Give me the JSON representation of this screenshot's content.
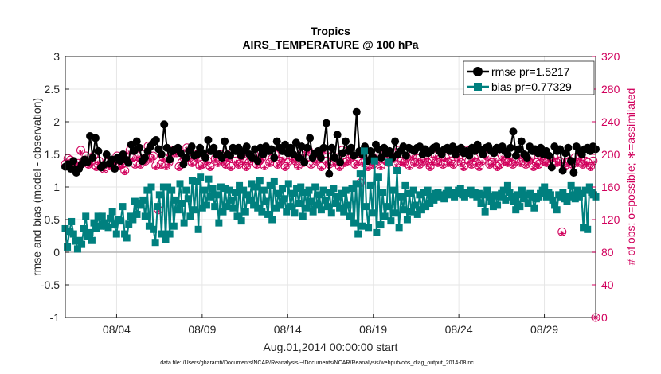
{
  "chart_data": {
    "type": "line",
    "title": "Tropics",
    "subtitle": "AIRS_TEMPERATURE @ 100 hPa",
    "xlabel": "Aug.01,2014 00:00:00 start",
    "ylabel": "rmse and bias (model - observation)",
    "ylabel_right": "# of obs: o=possible; ∗=assimilated",
    "footnote": "data file: /Users/gharamti/Documents/NCAR/Reanalysis/~/Documents/NCAR/Reanalysis/webpub/obs_diag_output_2014-08.nc",
    "xlim": [
      1,
      32
    ],
    "ylim": [
      -1,
      3
    ],
    "ylim_right": [
      0,
      320
    ],
    "x_ticks": [
      4,
      9,
      14,
      19,
      24,
      29
    ],
    "x_tick_labels": [
      "08/04",
      "08/09",
      "08/14",
      "08/19",
      "08/24",
      "08/29"
    ],
    "y_ticks": [
      "-1",
      "-0.5",
      "0",
      "0.5",
      "1",
      "1.5",
      "2",
      "2.5",
      "3"
    ],
    "y_ticks_right": [
      "0",
      "40",
      "80",
      "120",
      "160",
      "200",
      "240",
      "280",
      "320"
    ],
    "legend_position": "top-right",
    "series": [
      {
        "name": "rmse pr=1.5217",
        "color": "#000000",
        "values": [
          1.31,
          1.35,
          1.28,
          1.4,
          1.22,
          1.28,
          1.35,
          1.42,
          1.38,
          1.78,
          1.45,
          1.75,
          1.55,
          1.3,
          1.34,
          1.5,
          1.36,
          1.42,
          1.28,
          1.45,
          1.4,
          1.5,
          1.42,
          1.37,
          1.65,
          1.55,
          1.7,
          1.6,
          1.4,
          1.45,
          1.55,
          1.62,
          1.68,
          1.72,
          1.58,
          1.5,
          1.96,
          1.6,
          1.42,
          1.55,
          1.58,
          1.6,
          1.52,
          1.35,
          1.45,
          1.55,
          1.62,
          1.48,
          1.5,
          1.6,
          1.52,
          1.45,
          1.72,
          1.55,
          1.6,
          1.5,
          1.5,
          1.45,
          1.7,
          1.5,
          1.48,
          1.6,
          1.55,
          1.6,
          1.48,
          1.55,
          1.62,
          1.5,
          1.45,
          1.58,
          1.4,
          1.6,
          1.5,
          1.62,
          1.55,
          1.58,
          1.45,
          1.7,
          1.6,
          1.55,
          1.65,
          1.52,
          1.6,
          1.5,
          1.68,
          1.45,
          1.62,
          1.38,
          1.6,
          1.75,
          1.45,
          1.52,
          1.55,
          1.45,
          1.6,
          1.98,
          1.2,
          1.6,
          1.45,
          1.8,
          1.38,
          1.52,
          1.7,
          1.55,
          1.6,
          1.48,
          2.15,
          1.55,
          1.5,
          1.62,
          1.4,
          1.55,
          1.45,
          1.65,
          1.58,
          1.45,
          1.6,
          1.52,
          1.55,
          1.45,
          1.7,
          1.5,
          1.55,
          1.62,
          1.48,
          1.6,
          1.58,
          1.55,
          1.6,
          1.62,
          1.5,
          1.58,
          1.52,
          1.55,
          1.6,
          1.62,
          1.55,
          1.5,
          1.58,
          1.6,
          1.55,
          1.62,
          1.5,
          1.58,
          1.6,
          1.52,
          1.55,
          1.48,
          1.6,
          1.55,
          1.65,
          1.58,
          1.5,
          1.6,
          1.62,
          1.55,
          1.52,
          1.6,
          1.58,
          1.62,
          1.55,
          1.5,
          1.6,
          1.85,
          1.48,
          1.58,
          1.7,
          1.5,
          1.45,
          1.62,
          1.55,
          1.58,
          1.52,
          1.6,
          1.5,
          1.55,
          1.48,
          1.3,
          1.62,
          1.55,
          1.58,
          1.25,
          1.52,
          1.6,
          1.4,
          1.22,
          1.62,
          1.55,
          1.5,
          1.58,
          1.6,
          1.55,
          1.62,
          1.58
        ]
      },
      {
        "name": "bias pr=0.77329",
        "color": "#00807f",
        "values": [
          0.36,
          0.08,
          0.32,
          0.47,
          0.28,
          0.17,
          0.05,
          0.18,
          0.12,
          0.36,
          0.55,
          0.25,
          0.3,
          0.18,
          0.45,
          0.37,
          0.55,
          0.4,
          0.55,
          0.45,
          0.4,
          0.38,
          0.52,
          0.62,
          0.42,
          0.28,
          0.5,
          0.48,
          0.7,
          0.28,
          0.22,
          0.43,
          0.55,
          0.5,
          0.78,
          0.58,
          0.72,
          0.75,
          0.8,
          0.55,
          0.95,
          0.4,
          1.0,
          0.35,
          0.15,
          0.7,
          0.88,
          0.28,
          1.0,
          0.2,
          1.0,
          0.28,
          0.95,
          0.4,
          0.8,
          0.65,
          1.05,
          0.75,
          0.45,
          0.95,
          0.82,
          0.55,
          1.1,
          0.65,
          1.08,
          0.35,
          1.15,
          0.68,
          0.95,
          0.72,
          1.12,
          0.85,
          0.98,
          0.7,
          0.88,
          0.45,
          1.0,
          0.62,
          0.98,
          0.7,
          0.95,
          0.8,
          0.68,
          0.92,
          0.55,
          1.02,
          0.48,
          0.95,
          0.62,
          0.88,
          0.8,
          1.05,
          0.72,
          1.0,
          0.68,
          1.1,
          0.62,
          0.95,
          0.78,
          0.58,
          1.02,
          0.5,
          1.08,
          0.68,
          0.9,
          0.72,
          0.98,
          0.82,
          0.62,
          1.05,
          0.7,
          0.9,
          0.6,
          0.98,
          0.75,
          1.0,
          0.55,
          0.92,
          0.68,
          0.95,
          0.78,
          0.62,
          1.0,
          0.72,
          0.88,
          0.65,
          0.95,
          0.8,
          0.7,
          0.92,
          0.6,
          0.98,
          0.75,
          0.85,
          0.68,
          0.9,
          0.62,
          0.95,
          0.72,
          0.55,
          0.98,
          0.45,
          1.05,
          0.28,
          1.2,
          0.4,
          1.55,
          0.7,
          0.38,
          1.02,
          0.6,
          1.4,
          0.3,
          1.15,
          0.42,
          0.92,
          0.55,
          0.7,
          1.38,
          0.48,
          0.95,
          0.6,
          1.25,
          0.38,
          0.85,
          0.65,
          1.02,
          0.5,
          0.9,
          0.62,
          0.95,
          0.72,
          0.58,
          0.88,
          0.65,
          0.92,
          0.7,
          0.95,
          0.75,
          0.85,
          0.8,
          0.9,
          0.92,
          0.85,
          0.88,
          0.82,
          0.9,
          0.95,
          0.88,
          0.92,
          0.85,
          0.9,
          0.95,
          0.98,
          0.88,
          0.85,
          0.92,
          0.9,
          0.95,
          0.88,
          0.92,
          0.85,
          0.9,
          0.75,
          0.88,
          0.62,
          0.95,
          0.85,
          0.78,
          0.7,
          0.88,
          0.72,
          0.85,
          0.9,
          0.95,
          0.8,
          1.02,
          0.92,
          0.85,
          0.78,
          0.65,
          0.88,
          0.7,
          0.95,
          0.82,
          0.88,
          0.75,
          0.9,
          0.85,
          0.68,
          0.82,
          0.85,
          0.9,
          0.95,
          1.0,
          0.85,
          0.92,
          0.88,
          0.8,
          0.72,
          0.65,
          0.88,
          0.85,
          0.92,
          0.82,
          0.78,
          0.85,
          1.02,
          0.88,
          0.82,
          0.95,
          0.85,
          0.9,
          0.38,
          0.95,
          0.35,
          1.0,
          0.92,
          0.88,
          0.85
        ]
      },
      {
        "name": "possible",
        "axis": "right",
        "marker": "circle",
        "color": "#d1005c",
        "values": [
          188,
          195,
          193,
          190,
          186,
          189,
          205,
          192,
          198,
          188,
          190,
          198,
          185,
          192,
          186,
          182,
          190,
          186,
          188,
          192,
          198,
          186,
          188,
          180,
          192,
          205,
          196,
          188,
          198,
          188,
          200,
          192,
          210,
          195,
          198,
          186,
          132,
          188,
          196,
          186,
          190,
          200,
          205,
          202,
          185,
          190,
          195,
          208,
          196,
          190,
          200,
          195,
          186,
          188,
          198,
          192,
          185,
          205,
          195,
          190,
          200,
          192,
          188,
          196,
          185,
          205,
          192,
          188,
          198,
          192,
          185,
          190,
          195,
          200,
          188,
          192,
          196,
          186,
          205,
          190,
          195,
          200,
          188,
          192,
          196,
          185,
          190,
          205,
          195,
          192,
          186,
          200,
          190,
          195,
          205,
          188,
          195,
          192,
          200,
          185,
          205,
          192,
          188,
          198,
          190,
          196,
          185,
          205,
          190,
          192,
          195,
          198,
          188,
          192,
          165,
          190,
          198,
          185,
          192,
          188,
          200,
          192,
          186,
          205,
          192,
          190,
          198,
          195,
          188,
          205,
          192,
          190,
          196,
          186,
          198,
          190,
          195,
          188,
          192,
          196,
          190,
          185,
          192,
          198,
          190,
          195,
          188,
          196,
          190,
          192,
          188,
          200,
          195,
          190,
          185,
          205,
          192,
          188,
          196,
          190,
          185,
          192,
          205,
          198,
          188,
          190,
          195,
          185,
          188,
          198,
          192,
          190,
          196,
          188,
          192,
          200,
          190,
          195,
          188,
          192,
          196,
          185,
          190,
          188,
          198,
          192,
          190,
          195,
          188,
          196,
          190,
          192,
          105,
          185,
          190,
          192,
          188,
          196,
          190,
          195,
          188,
          192,
          190,
          185,
          192,
          0
        ]
      },
      {
        "name": "assimilated",
        "axis": "right",
        "marker": "star",
        "color": "#d1005c",
        "values": [
          186,
          192,
          190,
          188,
          184,
          188,
          202,
          190,
          196,
          186,
          188,
          196,
          183,
          190,
          184,
          180,
          188,
          184,
          186,
          190,
          196,
          184,
          186,
          178,
          190,
          202,
          194,
          186,
          196,
          186,
          198,
          190,
          207,
          193,
          196,
          184,
          130,
          186,
          194,
          184,
          188,
          198,
          203,
          200,
          183,
          188,
          193,
          206,
          194,
          188,
          198,
          193,
          184,
          186,
          196,
          190,
          183,
          203,
          193,
          188,
          198,
          190,
          186,
          194,
          183,
          203,
          190,
          186,
          196,
          190,
          183,
          188,
          193,
          198,
          186,
          190,
          194,
          184,
          203,
          188,
          193,
          198,
          186,
          190,
          194,
          183,
          188,
          203,
          193,
          190,
          184,
          198,
          188,
          193,
          203,
          186,
          193,
          190,
          198,
          183,
          203,
          190,
          186,
          196,
          188,
          194,
          183,
          203,
          188,
          190,
          193,
          196,
          186,
          190,
          163,
          188,
          196,
          183,
          190,
          186,
          198,
          190,
          184,
          203,
          190,
          188,
          196,
          193,
          186,
          203,
          190,
          188,
          194,
          184,
          196,
          188,
          193,
          186,
          190,
          194,
          188,
          183,
          190,
          196,
          188,
          193,
          186,
          194,
          188,
          190,
          186,
          198,
          193,
          188,
          183,
          203,
          190,
          186,
          194,
          188,
          183,
          190,
          203,
          196,
          186,
          188,
          193,
          183,
          186,
          196,
          190,
          188,
          194,
          186,
          190,
          198,
          188,
          193,
          186,
          190,
          194,
          183,
          188,
          186,
          196,
          190,
          188,
          193,
          186,
          194,
          188,
          190,
          103,
          183,
          188,
          190,
          186,
          194,
          188,
          193,
          186,
          190,
          188,
          183,
          190,
          0
        ]
      }
    ]
  }
}
